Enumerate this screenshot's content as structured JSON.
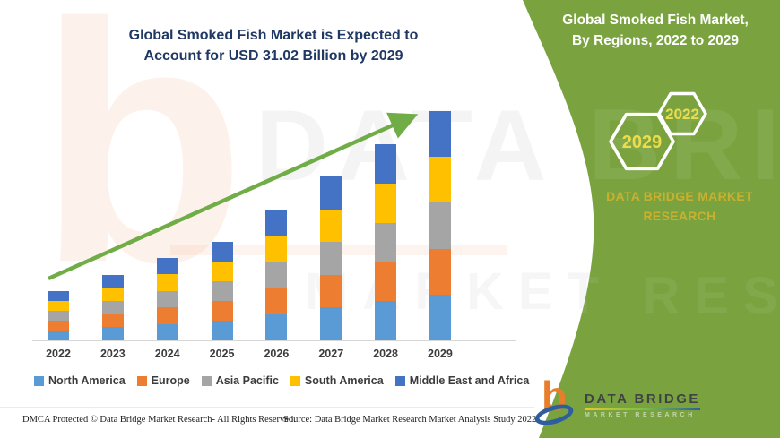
{
  "header": {
    "chart_title_line1": "Global Smoked Fish Market is Expected to",
    "chart_title_line2": "Account for USD 31.02 Billion by 2029"
  },
  "panel": {
    "title_line1": "Global Smoked Fish Market,",
    "title_line2": "By Regions, 2022 to 2029",
    "hexagon_back_year": "2029",
    "hexagon_front_year": "2022",
    "brand_line1": "DATA BRIDGE MARKET",
    "brand_line2": "RESEARCH",
    "background_color": "#7AA340",
    "accent_text_color": "#C9B12F",
    "hexagon_year_color": "#EDDC4C"
  },
  "logo": {
    "name": "DATA BRIDGE",
    "subtext": "MARKET RESEARCH"
  },
  "footer": {
    "dmca_text": "DMCA Protected © Data Bridge Market Research- All Rights Reserved.",
    "source_text": "Source: Data Bridge Market Research Market Analysis Study 2022"
  },
  "watermark": {
    "letter": "b",
    "text_line1": "DATA BRIDGE",
    "text_line2": "MARKET RESEARCH"
  },
  "chart_data": {
    "type": "bar",
    "stacked": true,
    "unit": "USD billion",
    "title": "Global Smoked Fish Market is Expected to Account for USD 31.02 Billion by 2029",
    "categories": [
      "2022",
      "2023",
      "2024",
      "2025",
      "2026",
      "2027",
      "2028",
      "2029"
    ],
    "series": [
      {
        "name": "North America",
        "color": "#5B9BD5",
        "values": [
          1.33,
          1.77,
          2.23,
          2.67,
          3.54,
          4.43,
          5.31,
          6.204
        ]
      },
      {
        "name": "Europe",
        "color": "#ED7D31",
        "values": [
          1.33,
          1.77,
          2.23,
          2.67,
          3.54,
          4.43,
          5.31,
          6.204
        ]
      },
      {
        "name": "Asia Pacific",
        "color": "#A5A5A5",
        "values": [
          1.33,
          1.77,
          2.23,
          2.67,
          3.54,
          4.43,
          5.31,
          6.204
        ]
      },
      {
        "name": "South America",
        "color": "#FFC000",
        "values": [
          1.33,
          1.77,
          2.23,
          2.67,
          3.54,
          4.43,
          5.31,
          6.204
        ]
      },
      {
        "name": "Middle East and Africa",
        "color": "#4472C4",
        "values": [
          1.33,
          1.77,
          2.23,
          2.67,
          3.54,
          4.43,
          5.31,
          6.204
        ]
      }
    ],
    "totals_estimated": [
      6.65,
      8.85,
      11.15,
      13.35,
      17.7,
      22.15,
      26.55,
      31.02
    ],
    "ylim": [
      0,
      31.02
    ],
    "xlabel": "",
    "ylabel": "",
    "gridlines": false,
    "y_axis_visible": false,
    "legend_position": "bottom",
    "trend_arrow": true,
    "trend_arrow_color": "#70AD47"
  }
}
